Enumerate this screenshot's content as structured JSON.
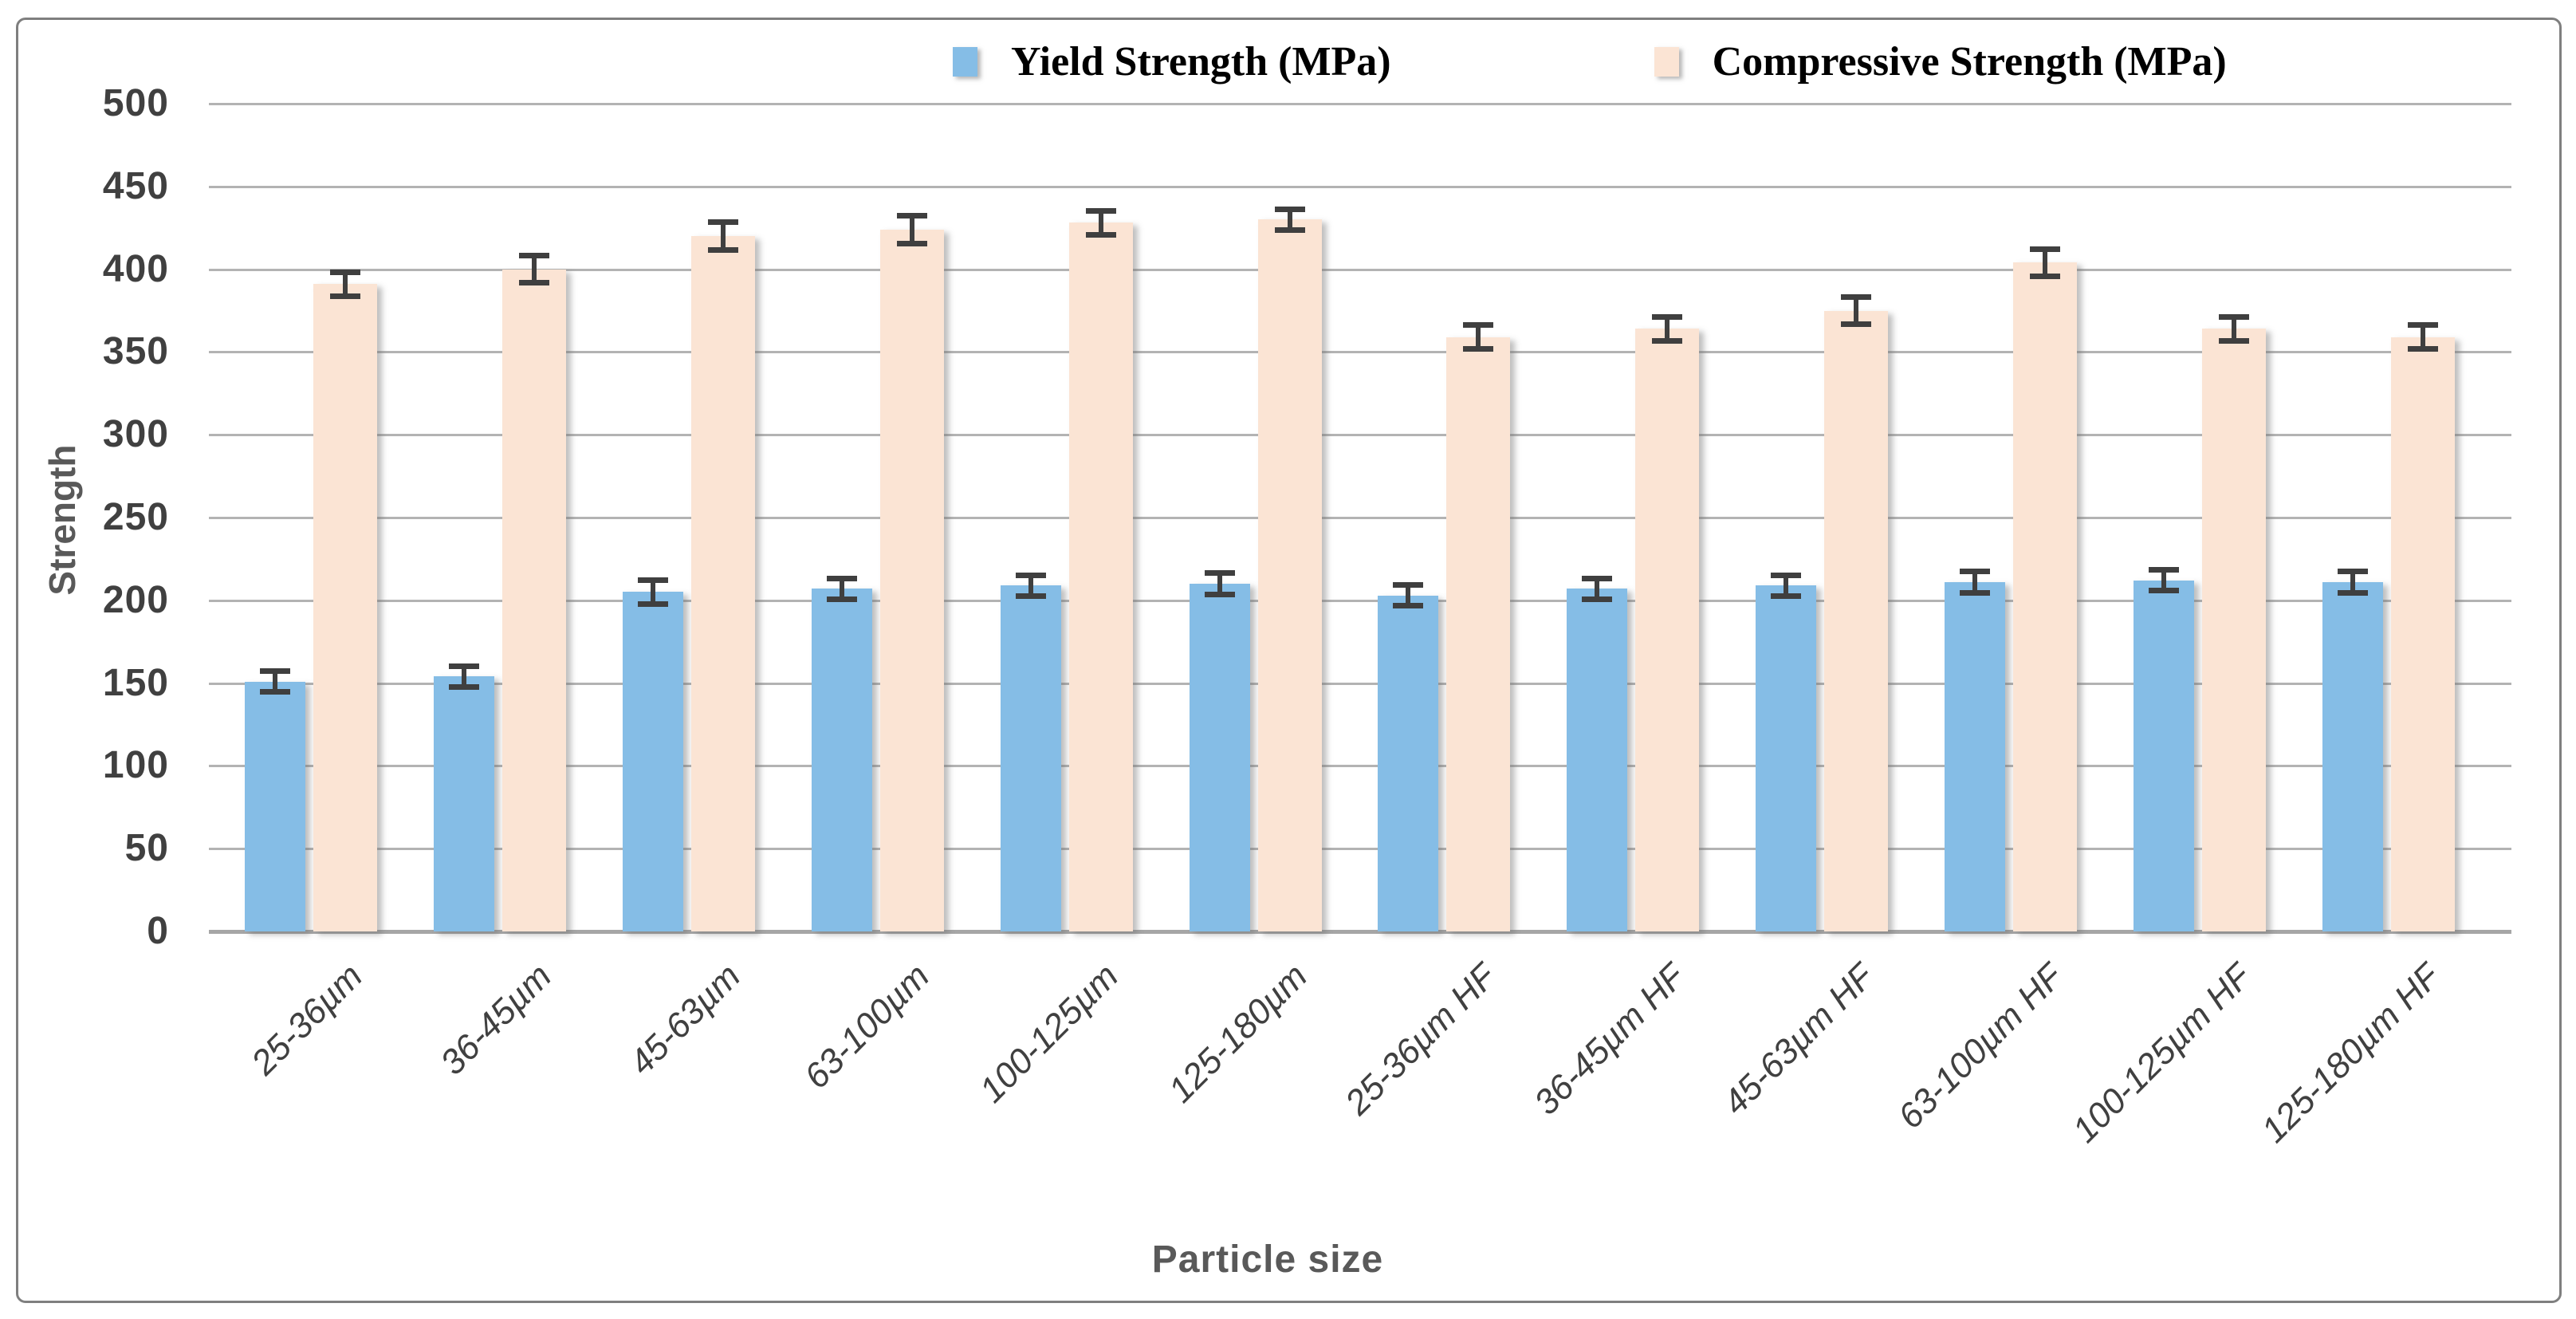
{
  "chart_data": {
    "type": "bar",
    "title": "",
    "xlabel": "Particle size",
    "ylabel": "Strength",
    "ylim": [
      0,
      500
    ],
    "ytick_step": 50,
    "grid": true,
    "legend_position": "top-center",
    "categories": [
      "25-36µm",
      "36-45µm",
      "45-63µm",
      "63-100µm",
      "100-125µm",
      "125-180µm",
      "25-36µm HF",
      "36-45µm HF",
      "45-63µm HF",
      "63-100µm HF",
      "100-125µm HF",
      "125-180µm HF"
    ],
    "series": [
      {
        "name": "Yield Strength (MPa)",
        "color": "#85BDE6",
        "values": [
          151,
          154,
          205,
          207,
          209,
          210,
          203,
          207,
          209,
          211,
          212,
          211
        ],
        "errors": [
          8,
          8,
          9,
          8,
          8,
          8,
          8,
          8,
          8,
          8,
          8,
          8
        ]
      },
      {
        "name": "Compressive Strength (MPa)",
        "color": "#FBE4D4",
        "values": [
          391,
          400,
          420,
          424,
          428,
          430,
          359,
          364,
          375,
          404,
          364,
          359
        ],
        "errors": [
          9,
          10,
          10,
          10,
          9,
          8,
          9,
          9,
          10,
          10,
          9,
          9
        ]
      }
    ],
    "error_bar_color": "#3F3F3F"
  },
  "colors": {
    "background": "#FFFFFF",
    "frame_border": "#7F7F7F",
    "gridline": "#B3B3B3",
    "axis_line": "#A6A6A6",
    "tick_text": "#404040",
    "axis_title_text": "#595959",
    "legend_text": "#000000"
  }
}
